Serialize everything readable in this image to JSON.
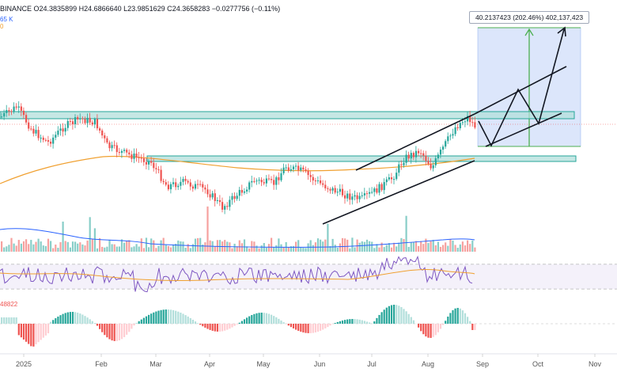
{
  "header": {
    "symbol_fragment": "BINANCE",
    "ohlc": "O24.3835899  H24.6866640  L23.9851629  C24.3658283  −0.0277756 (−0.11%)",
    "volume_fragment": "65 K",
    "ma_fragment": "0"
  },
  "projection_label": "40.2137423 (202.46%) 402,137,423",
  "macd_value_fragment": "48822",
  "x_axis_labels": [
    "2025",
    "Feb",
    "Mar",
    "Apr",
    "May",
    "Jun",
    "Jul",
    "Aug",
    "Sep",
    "Oct",
    "Nov"
  ],
  "colors": {
    "up": "#26a69a",
    "down": "#ef5350",
    "zone_fill": "#b2dfdb",
    "zone_stroke": "#26a69a",
    "target_box": "#dce6fb",
    "target_arrow": "#4caf50",
    "ma_line": "#f0a030",
    "rsi_line": "#7e57c2",
    "volume_ma": "#2962ff"
  }
}
